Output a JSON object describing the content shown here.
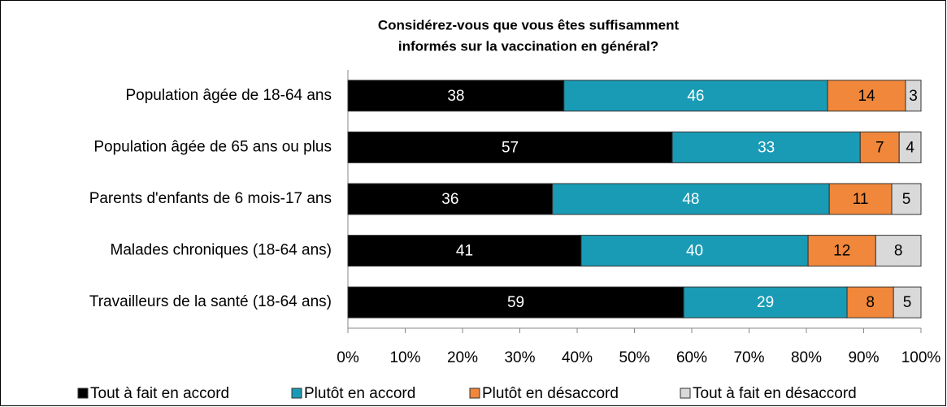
{
  "chart_data": {
    "type": "bar",
    "orientation": "horizontal",
    "stacked": true,
    "title": [
      "Considérez-vous que vous êtes suffisamment",
      "informés sur la vaccination en général?"
    ],
    "categories": [
      "Population âgée de 18-64 ans",
      "Population âgée de 65 ans ou plus",
      "Parents d'enfants de 6 mois-17 ans",
      "Malades chroniques (18-64 ans)",
      "Travailleurs de la santé (18-64 ans)"
    ],
    "series": [
      {
        "name": "Tout à fait en accord",
        "color": "#000000",
        "label_color": "#ffffff",
        "values": [
          37.7,
          56.6,
          35.7,
          40.7,
          58.6
        ],
        "value_labels": [
          "38",
          "57",
          "36",
          "41",
          "59"
        ]
      },
      {
        "name": "Plutôt en accord",
        "color": "#1a9bb5",
        "label_color": "#ffffff",
        "values": [
          46.0,
          32.8,
          48.3,
          39.6,
          28.5
        ],
        "value_labels": [
          "46",
          "33",
          "48",
          "40",
          "29"
        ]
      },
      {
        "name": "Plutôt en désaccord",
        "color": "#f0873a",
        "label_color": "#000000",
        "values": [
          13.6,
          6.8,
          10.9,
          11.8,
          8.1
        ],
        "value_labels": [
          "14",
          "7",
          "11",
          "12",
          "8"
        ]
      },
      {
        "name": "Tout à fait en désaccord",
        "color": "#d9d9d9",
        "label_color": "#000000",
        "values": [
          2.7,
          3.8,
          5.1,
          7.9,
          4.8
        ],
        "value_labels": [
          "3",
          "4",
          "5",
          "8",
          "5"
        ]
      }
    ],
    "xlim": [
      0,
      100
    ],
    "xticks": [
      {
        "value": 0,
        "label": "0%"
      },
      {
        "value": 10,
        "label": "10%"
      },
      {
        "value": 20,
        "label": "20%"
      },
      {
        "value": 30,
        "label": "30%"
      },
      {
        "value": 40,
        "label": "40%"
      },
      {
        "value": 50,
        "label": "50%"
      },
      {
        "value": 60,
        "label": "60%"
      },
      {
        "value": 70,
        "label": "70%"
      },
      {
        "value": 80,
        "label": "80%"
      },
      {
        "value": 90,
        "label": "90%"
      },
      {
        "value": 100,
        "label": "100%"
      }
    ],
    "grid": false,
    "legend": "bottom"
  }
}
